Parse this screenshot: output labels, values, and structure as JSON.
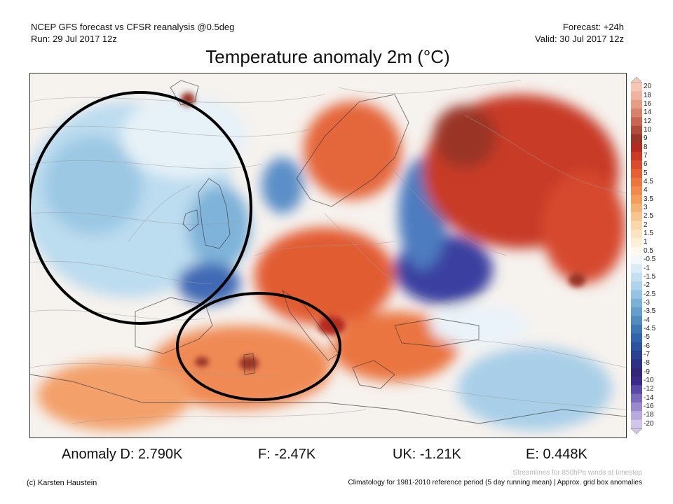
{
  "header": {
    "model_line": "NCEP GFS forecast vs CFSR reanalysis @0.5deg",
    "run_line": "Run: 29 Jul 2017 12z",
    "forecast_line": "Forecast: +24h",
    "valid_line": "Valid: 30 Jul 2017 12z"
  },
  "title": "Temperature anomaly 2m (°C)",
  "colorbar": {
    "labels": [
      "20",
      "18",
      "16",
      "14",
      "12",
      "10",
      "9",
      "8",
      "7",
      "6",
      "5",
      "4.5",
      "4",
      "3.5",
      "3",
      "2.5",
      "2",
      "1.5",
      "1",
      "0.5",
      "-0.5",
      "-1",
      "-1.5",
      "-2",
      "-2.5",
      "-3",
      "-3.5",
      "-4",
      "-4.5",
      "-5",
      "-6",
      "-7",
      "-8",
      "-9",
      "-10",
      "-12",
      "-14",
      "-16",
      "-18",
      "-20"
    ],
    "colors": [
      "#f4c7b6",
      "#efb3a0",
      "#e69c86",
      "#d9826b",
      "#c86652",
      "#b14b3b",
      "#9a3528",
      "#b52a1f",
      "#cc3a26",
      "#dc4a2c",
      "#e65f35",
      "#ec7540",
      "#f0894d",
      "#f39d5f",
      "#f6b176",
      "#f8c48f",
      "#fad6a9",
      "#fbe4c2",
      "#fdefd8",
      "#fff8ee",
      "#f2f8fc",
      "#dcecf7",
      "#c5e0f1",
      "#aed3ea",
      "#95c3e1",
      "#7cb1d7",
      "#649ecb",
      "#4f8bbf",
      "#3d78b2",
      "#3164a8",
      "#2b529c",
      "#2a418f",
      "#2c3283",
      "#322677",
      "#3b2a8a",
      "#5a4aa6",
      "#7a6ab9",
      "#9a8acb",
      "#b8aadc",
      "#d2c6ea"
    ]
  },
  "stats": {
    "d_label": "Anomaly D: 2.790K",
    "f_label": "F: -2.47K",
    "uk_label": "UK: -1.21K",
    "e_label": "E: 0.448K"
  },
  "footer": {
    "streamlines_note": "Streamlines for 850hPa winds at timestep",
    "copyright": "(c) Karsten Haustein",
    "climatology_note": "Climatology for 1981-2010 reference period (5 day running mean) | Approx. grid box anomalies"
  }
}
